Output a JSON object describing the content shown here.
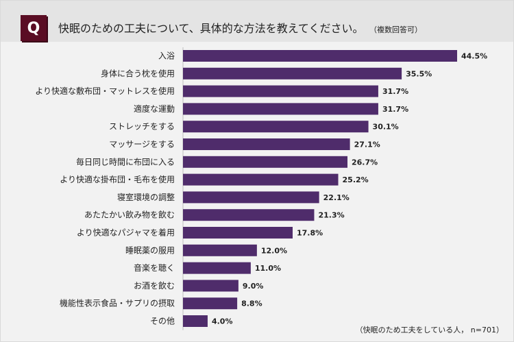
{
  "header": {
    "badge": "Q",
    "question": "快眠のための工夫について、具体的な方法を教えてください。",
    "note": "（複数回答可）"
  },
  "footnote": "（快眠のため工夫をしている人， n=701）",
  "colors": {
    "bar": "#4f2c6b",
    "badge": "#5a0d24"
  },
  "chart_data": {
    "type": "bar",
    "orientation": "horizontal",
    "categories": [
      "入浴",
      "身体に合う枕を使用",
      "より快適な敷布団・マットレスを使用",
      "適度な運動",
      "ストレッチをする",
      "マッサージをする",
      "毎日同じ時間に布団に入る",
      "より快適な掛布団・毛布を使用",
      "寝室環境の調整",
      "あたたかい飲み物を飲む",
      "より快適なパジャマを着用",
      "睡眠薬の服用",
      "音楽を聴く",
      "お酒を飲む",
      "機能性表示食品・サプリの摂取",
      "その他"
    ],
    "values": [
      44.5,
      35.5,
      31.7,
      31.7,
      30.1,
      27.1,
      26.7,
      25.2,
      22.1,
      21.3,
      17.8,
      12.0,
      11.0,
      9.0,
      8.8,
      4.0
    ],
    "data_labels": [
      "44.5%",
      "35.5%",
      "31.7%",
      "31.7%",
      "30.1%",
      "27.1%",
      "26.7%",
      "25.2%",
      "22.1%",
      "21.3%",
      "17.8%",
      "12.0%",
      "11.0%",
      "9.0%",
      "8.8%",
      "4.0%"
    ],
    "unit": "%",
    "xlim": [
      0,
      44.5
    ],
    "grid": false,
    "legend": "none"
  }
}
